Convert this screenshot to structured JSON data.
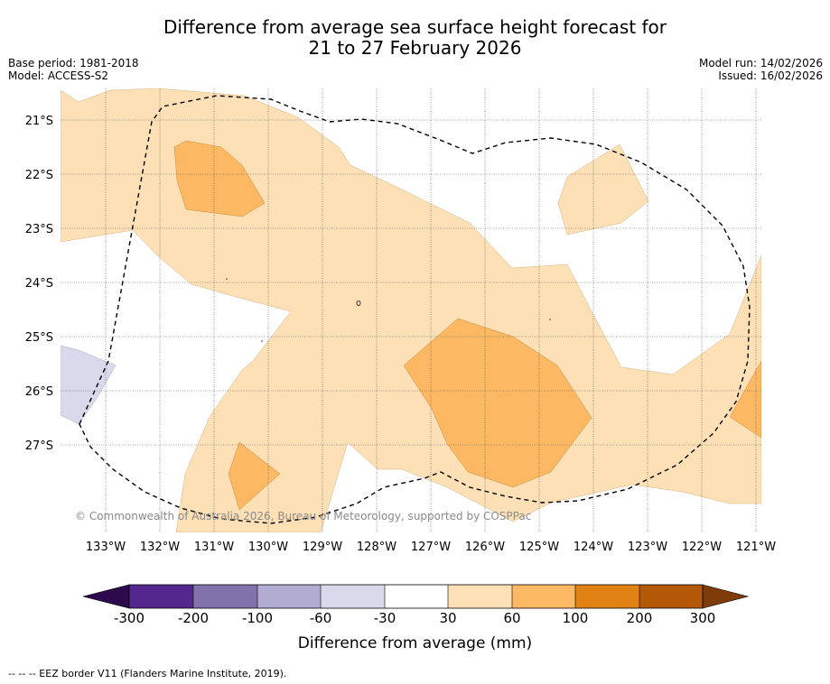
{
  "title": {
    "line1": "Difference from average sea surface height forecast for",
    "line2": "21 to 27 February 2026"
  },
  "meta_left": {
    "base_period": "Base period: 1981-2018",
    "model": "Model: ACCESS-S2"
  },
  "meta_right": {
    "model_run": "Model run: 14/02/2026",
    "issued": "Issued: 16/02/2026"
  },
  "map": {
    "lat_labels": [
      "21°S",
      "22°S",
      "23°S",
      "24°S",
      "25°S",
      "26°S",
      "27°S"
    ],
    "lon_labels": [
      "133°W",
      "132°W",
      "131°W",
      "130°W",
      "129°W",
      "128°W",
      "127°W",
      "126°W",
      "125°W",
      "124°W",
      "123°W",
      "122°W",
      "121°W"
    ],
    "copyright": "© Commonwealth of Australia 2026, Bureau of Meteorology, supported by COSPPac"
  },
  "colorbar": {
    "label": "Difference from average (mm)",
    "ticks": [
      "-300",
      "-200",
      "-100",
      "-60",
      "-30",
      "30",
      "60",
      "100",
      "200",
      "300"
    ],
    "colors": {
      "extend_low": "#2d0a4e",
      "c1": "#54278f",
      "c2": "#8073ac",
      "c3": "#b2abd2",
      "c4": "#d8daeb",
      "c5": "#ffffff",
      "c6": "#fee0b6",
      "c7": "#fdb863",
      "c8": "#e08214",
      "c9": "#b35806",
      "extend_high": "#7f3b08"
    }
  },
  "footnote": "--  --  -- EEZ border V11 (Flanders Marine Institute, 2019)."
}
